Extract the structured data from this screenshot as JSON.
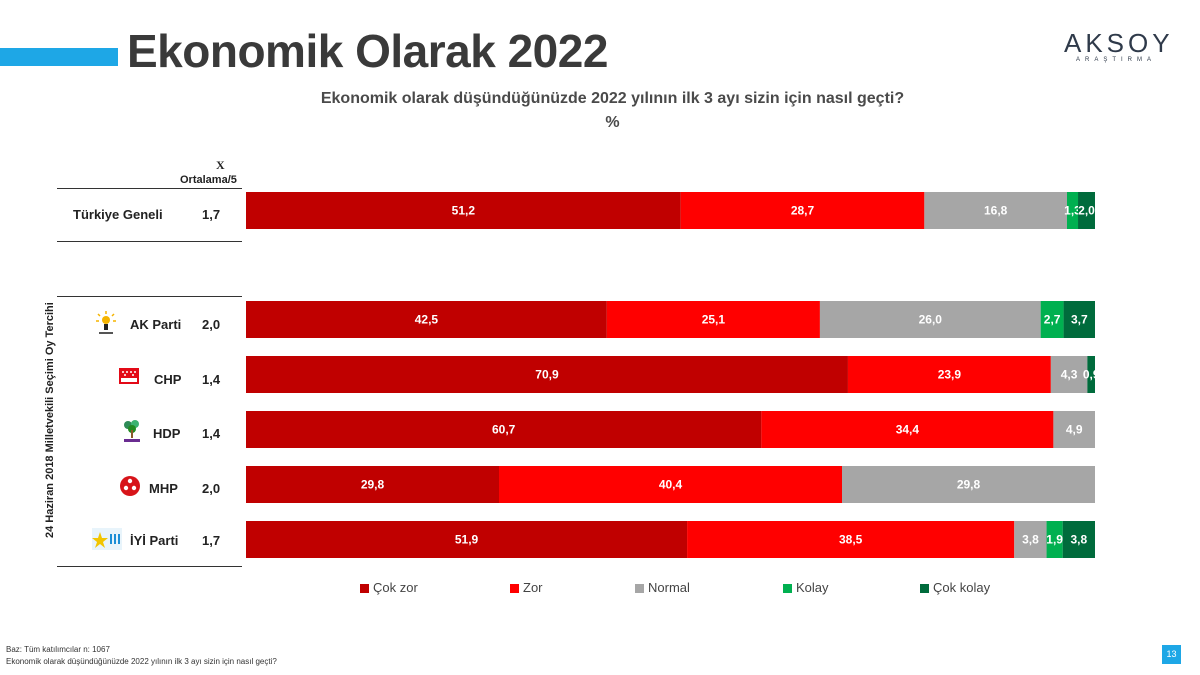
{
  "header": {
    "title": "Ekonomik Olarak 2022",
    "logo_main": "AKSOY",
    "logo_sub": "ARAŞTIRMA"
  },
  "question": "Ekonomik olarak düşündüğünüzde 2022 yılının ilk 3 ayı sizin için nasıl geçti?",
  "unit": "%",
  "avg_header_symbol": "X",
  "avg_header_label": "Ortalama/5",
  "vertical_label": "24 Haziran 2018 Milletvekili Seçimi Oy Tercihi",
  "rows": [
    {
      "label": "Türkiye Geneli",
      "avg": "1,7",
      "icon": "none"
    },
    {
      "label": "AK Parti",
      "avg": "2,0",
      "icon": "akparti-logo-icon"
    },
    {
      "label": "CHP",
      "avg": "1,4",
      "icon": "chp-logo-icon"
    },
    {
      "label": "HDP",
      "avg": "1,4",
      "icon": "hdp-logo-icon"
    },
    {
      "label": "MHP",
      "avg": "2,0",
      "icon": "mhp-logo-icon"
    },
    {
      "label": "İYİ Parti",
      "avg": "1,7",
      "icon": "iyi-logo-icon"
    }
  ],
  "chart_data": {
    "type": "bar",
    "orientation": "horizontal-stacked-100",
    "categories": [
      "Türkiye Geneli",
      "AK Parti",
      "CHP",
      "HDP",
      "MHP",
      "İYİ Parti"
    ],
    "series": [
      {
        "name": "Çok zor",
        "color": "#c00000",
        "values": [
          51.2,
          42.5,
          70.9,
          60.7,
          29.8,
          51.9
        ],
        "labels": [
          "51,2",
          "42,5",
          "70,9",
          "60,7",
          "29,8",
          "51,9"
        ]
      },
      {
        "name": "Zor",
        "color": "#ff0000",
        "values": [
          28.7,
          25.1,
          23.9,
          34.4,
          40.4,
          38.5
        ],
        "labels": [
          "28,7",
          "25,1",
          "23,9",
          "34,4",
          "40,4",
          "38,5"
        ]
      },
      {
        "name": "Normal",
        "color": "#a6a6a6",
        "values": [
          16.8,
          26.0,
          4.3,
          4.9,
          29.8,
          3.8
        ],
        "labels": [
          "16,8",
          "26,0",
          "4,3",
          "4,9",
          "29,8",
          "3,8"
        ]
      },
      {
        "name": "Kolay",
        "color": "#00b050",
        "values": [
          1.3,
          2.7,
          0.0,
          0.0,
          0.0,
          1.9
        ],
        "labels": [
          "1,3",
          "2,7",
          "",
          "",
          "",
          "1,9"
        ]
      },
      {
        "name": "Çok kolay",
        "color": "#006b3c",
        "values": [
          2.0,
          3.7,
          0.9,
          0.0,
          0.0,
          3.8
        ],
        "labels": [
          "2,0",
          "3,7",
          "0,9",
          "",
          "",
          "3,8"
        ]
      }
    ],
    "legend_position": "bottom",
    "grid": false
  },
  "footer": {
    "base": "Baz: Tüm katılımcılar n: 1067",
    "question": "Ekonomik olarak düşündüğünüzde 2022 yılının ilk 3 ayı sizin için nasıl geçti?",
    "page_number": "13"
  }
}
